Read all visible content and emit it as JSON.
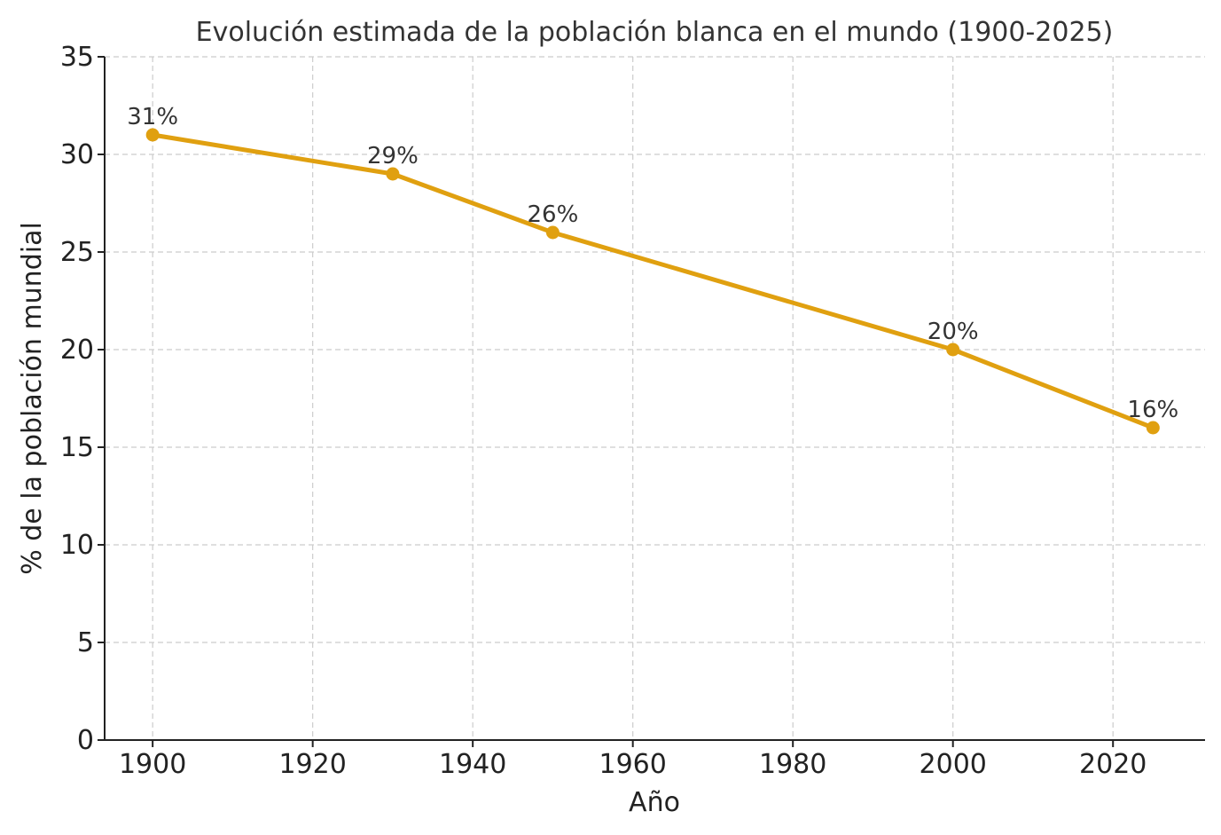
{
  "chart_data": {
    "type": "line",
    "title": "Evolución estimada de la población blanca en el mundo (1900-2025)",
    "xlabel": "Año",
    "ylabel": "% de la población mundial",
    "x": [
      1900,
      1930,
      1950,
      2000,
      2025
    ],
    "series": [
      {
        "values": [
          31,
          29,
          26,
          20,
          16
        ],
        "labels": [
          "31%",
          "29%",
          "26%",
          "20%",
          "16%"
        ],
        "color": "#e0a010"
      }
    ],
    "xlim": [
      1894,
      2031.5
    ],
    "ylim": [
      0,
      35
    ],
    "xticks": [
      1900,
      1920,
      1940,
      1960,
      1980,
      2000,
      2020
    ],
    "yticks": [
      0,
      5,
      10,
      15,
      20,
      25,
      30,
      35
    ],
    "grid": true,
    "grid_style": "dashed",
    "legend": "none"
  }
}
